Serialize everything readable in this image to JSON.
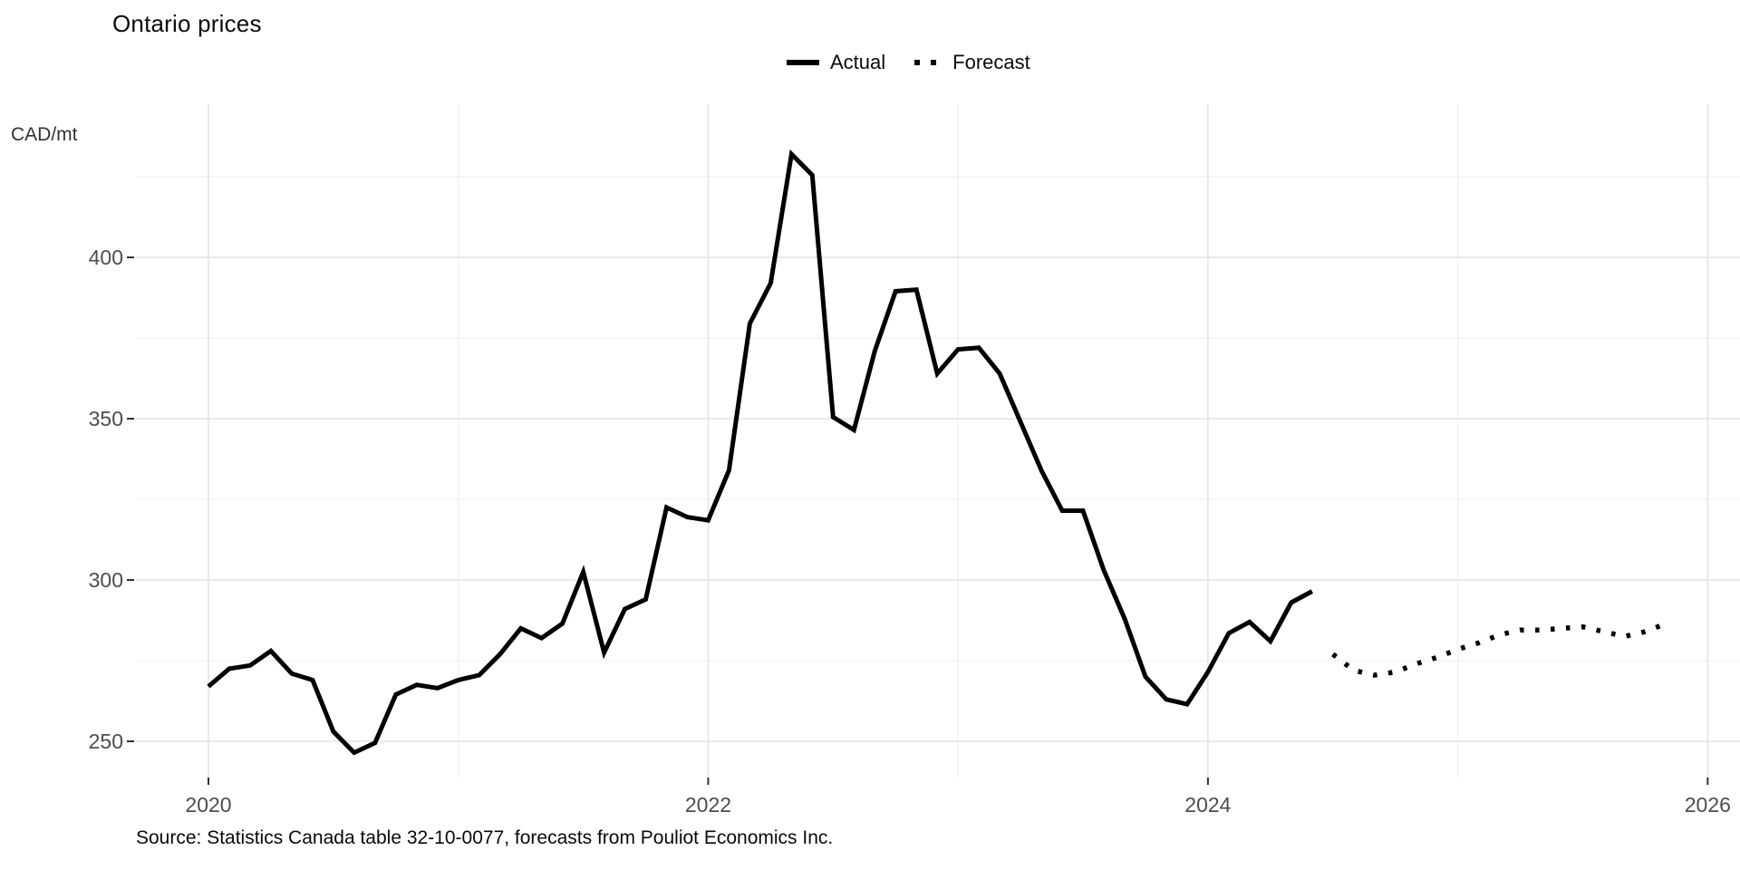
{
  "title": "Ontario prices",
  "y_axis": {
    "unit_label": "CAD/mt",
    "tick_labels": [
      "250",
      "300",
      "350",
      "400"
    ]
  },
  "x_axis": {
    "tick_labels": [
      "2020",
      "2022",
      "2024",
      "2026"
    ]
  },
  "legend": {
    "actual_label": "Actual",
    "forecast_label": "Forecast"
  },
  "source": "Source: Statistics Canada table 32-10-0077, forecasts from Pouliot Economics Inc.",
  "colors": {
    "line": "#000000",
    "axis_text": "#4d4d4d",
    "gridline_major": "#e4e4e4",
    "gridline_minor": "#eeeeee",
    "tick_mark": "#333333",
    "background": "#ffffff"
  },
  "chart_data": {
    "type": "line",
    "frequency": "monthly",
    "title": "Ontario prices",
    "ylabel": "CAD/mt",
    "ylim": [
      240,
      445
    ],
    "xlim": [
      "2020-01",
      "2026-01"
    ],
    "grid": true,
    "legend_position": "top-center",
    "y_major_ticks": [
      250,
      300,
      350,
      400
    ],
    "y_minor_gridlines": [
      275,
      325,
      375,
      425
    ],
    "x_major_ticks": [
      2020,
      2022,
      2024,
      2026
    ],
    "x_minor_gridlines": [
      2021,
      2023,
      2025
    ],
    "series": [
      {
        "name": "Actual",
        "style": "solid",
        "start": "2020-01",
        "values": [
          267,
          272.5,
          273.5,
          278,
          271,
          269,
          253,
          246.5,
          249.5,
          264.5,
          267.5,
          266.5,
          269,
          270.5,
          277,
          285,
          282,
          286.5,
          302.5,
          277.5,
          291,
          294,
          322.5,
          319.5,
          318.5,
          334,
          379.5,
          392,
          432,
          425.5,
          350.5,
          346.5,
          371,
          389.5,
          390,
          364,
          371.5,
          372,
          364,
          349,
          334,
          321.5,
          321.5,
          303,
          288,
          270,
          263,
          261.5,
          271.5,
          283.5,
          287,
          281,
          293,
          296.5
        ]
      },
      {
        "name": "Forecast",
        "style": "dotted",
        "start": "2024-07",
        "values": [
          277,
          272,
          270.5,
          271.5,
          274,
          276,
          278.5,
          280.5,
          283,
          284.5,
          284.5,
          285,
          285.5,
          284,
          282.5,
          284,
          286.5
        ]
      }
    ]
  }
}
